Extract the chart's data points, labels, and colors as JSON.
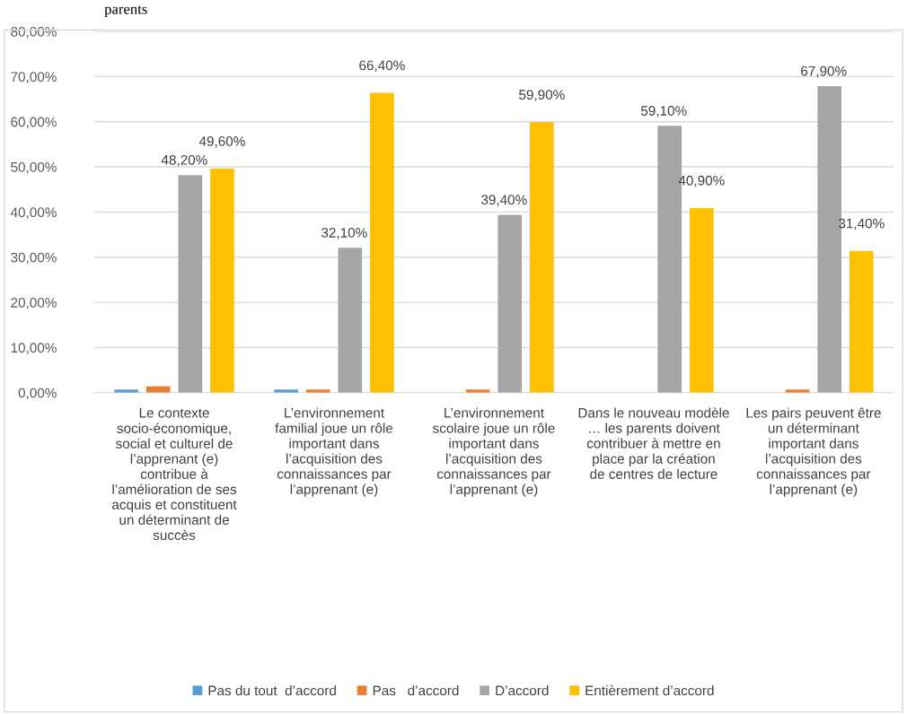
{
  "chart_data": {
    "type": "bar",
    "annotations": [
      "parents"
    ],
    "categories": [
      "Le contexte socio-économique, social et culturel de l’apprenant (e) contribue à l’amélioration de ses acquis et constituent un déterminant de succès",
      "L’environnement familial joue un rôle important dans l’acquisition des connaissances par l’apprenant (e)",
      "L’environnement scolaire joue un rôle important dans l’acquisition des connaissances par l’apprenant (e)",
      "Dans le nouveau modèle … les parents doivent contribuer à mettre en place par la création de centres de lecture",
      "Les pairs peuvent être un déterminant important dans l’acquisition des connaissances par l’apprenant (e)"
    ],
    "series": [
      {
        "name": "Pas du tout  d’accord",
        "color": "#5b9bd5",
        "values": [
          0.7,
          0.7,
          0,
          0,
          0
        ]
      },
      {
        "name": "Pas   d’accord",
        "color": "#ed7d31",
        "values": [
          1.4,
          0.7,
          0.7,
          0,
          0.7
        ]
      },
      {
        "name": "D’accord",
        "color": "#a5a5a5",
        "values": [
          48.2,
          32.1,
          39.4,
          59.1,
          67.9
        ],
        "value_labels": [
          "48,20%",
          "32,10%",
          "39,40%",
          "59,10%",
          "67,90%"
        ]
      },
      {
        "name": "Entièrement d’accord",
        "color": "#ffc000",
        "values": [
          49.6,
          66.4,
          59.9,
          40.9,
          31.4
        ],
        "value_labels": [
          "49,60%",
          "66,40%",
          "59,90%",
          "40,90%",
          "31,40%"
        ]
      }
    ],
    "ylim": [
      0,
      80
    ],
    "yticks": [
      {
        "value": 0,
        "label": "0,00%"
      },
      {
        "value": 10,
        "label": "10,00%"
      },
      {
        "value": 20,
        "label": "20,00%"
      },
      {
        "value": 30,
        "label": "30,00%"
      },
      {
        "value": 40,
        "label": "40,00%"
      },
      {
        "value": 50,
        "label": "50,00%"
      },
      {
        "value": 60,
        "label": "60,00%"
      },
      {
        "value": 70,
        "label": "70,00%"
      },
      {
        "value": 80,
        "label": "80,00%"
      }
    ],
    "grid": "y",
    "legend": "bottom"
  }
}
